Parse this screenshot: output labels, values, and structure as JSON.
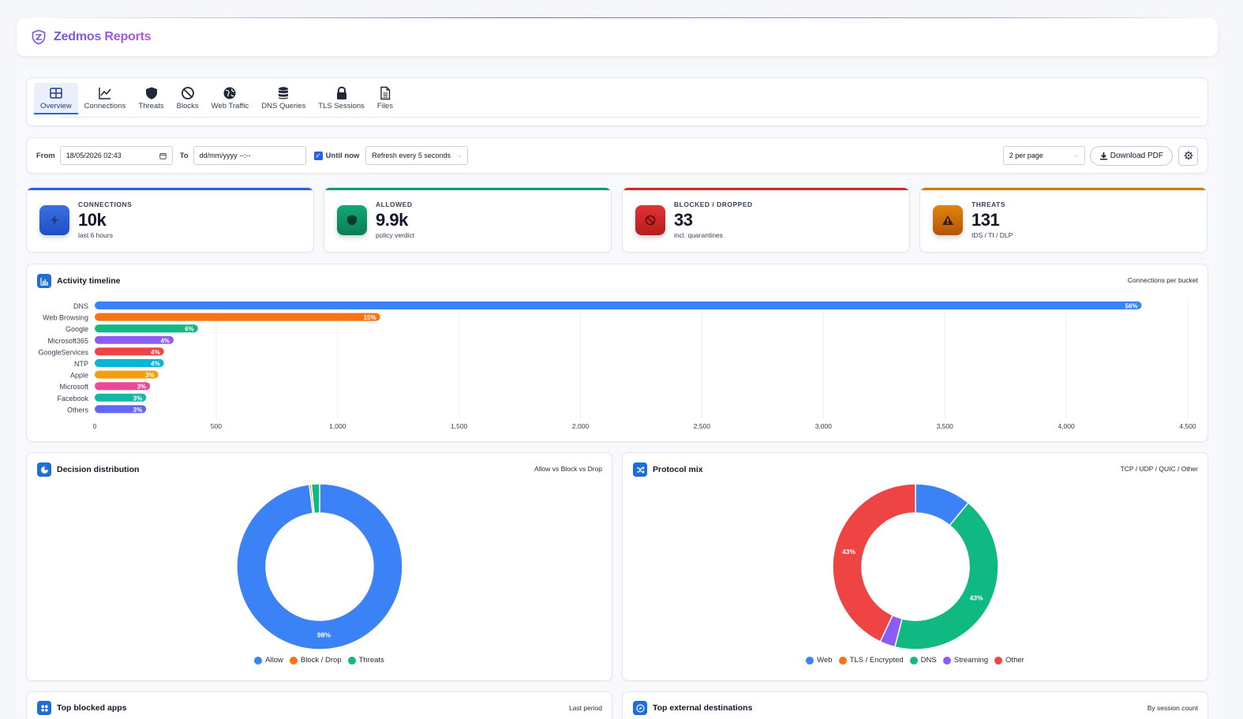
{
  "app": {
    "title": "Zedmos Reports",
    "brand_color": "#7a56e6"
  },
  "tabs": [
    {
      "label": "Overview",
      "icon": "grid-icon",
      "active": true
    },
    {
      "label": "Connections",
      "icon": "chart-line-icon",
      "active": false
    },
    {
      "label": "Threats",
      "icon": "shield-icon",
      "active": false
    },
    {
      "label": "Blocks",
      "icon": "ban-icon",
      "active": false
    },
    {
      "label": "Web Traffic",
      "icon": "globe-icon",
      "active": false
    },
    {
      "label": "DNS Queries",
      "icon": "database-icon",
      "active": false
    },
    {
      "label": "TLS Sessions",
      "icon": "lock-icon",
      "active": false
    },
    {
      "label": "Files",
      "icon": "file-icon",
      "active": false
    }
  ],
  "filters": {
    "from_label": "From",
    "from_value": "18/05/2026 02:43",
    "to_label": "To",
    "to_placeholder": "dd/mm/yyyy --:--",
    "until_now_label": "Until now",
    "until_now_checked": true,
    "refresh_value": "Refresh every 5 seconds",
    "per_page_value": "2 per page",
    "download_label": "Download PDF"
  },
  "stats": [
    {
      "label": "CONNECTIONS",
      "value": "10k",
      "sub": "last 6 hours",
      "color": "#2563eb",
      "icon": "bolt-icon"
    },
    {
      "label": "ALLOWED",
      "value": "9.9k",
      "sub": "policy verdict",
      "color": "#0f9d6b",
      "icon": "shield-icon"
    },
    {
      "label": "BLOCKED / DROPPED",
      "value": "33",
      "sub": "incl. quarantines",
      "color": "#dc2626",
      "icon": "ban-icon"
    },
    {
      "label": "THREATS",
      "value": "131",
      "sub": "IDS / TI / DLP",
      "color": "#d97706",
      "icon": "warning-icon"
    }
  ],
  "timeline": {
    "title": "Activity timeline",
    "right": "Connections per bucket"
  },
  "decision": {
    "title": "Decision distribution",
    "right": "Allow vs Block vs Drop"
  },
  "protocol": {
    "title": "Protocol mix",
    "right": "TCP / UDP / QUIC / Other"
  },
  "bottom": {
    "left_title": "Top blocked apps",
    "left_right": "Last period",
    "right_title": "Top external destinations",
    "right_right": "By session count"
  },
  "chart_data": [
    {
      "type": "bar",
      "orientation": "horizontal",
      "categories": [
        "DNS",
        "Web Browsing",
        "Google",
        "Microsoft365",
        "GoogleServices",
        "NTP",
        "Apple",
        "Microsoft",
        "Facebook",
        "Others"
      ],
      "values": [
        4310,
        1175,
        425,
        325,
        285,
        285,
        262,
        228,
        212,
        212
      ],
      "labels": [
        "56%",
        "15%",
        "6%",
        "4%",
        "4%",
        "4%",
        "3%",
        "3%",
        "3%",
        "3%"
      ],
      "colors": [
        "#3b82f6",
        "#f97316",
        "#10b981",
        "#8b5cf6",
        "#ef4444",
        "#06b6d4",
        "#f59e0b",
        "#ec4899",
        "#14b8a6",
        "#6366f1"
      ],
      "xlim": [
        0,
        4500
      ],
      "xticks": [
        "0",
        "500",
        "1,000",
        "1,500",
        "2,000",
        "2,500",
        "3,000",
        "3,500",
        "4,000",
        "4,500"
      ],
      "grid": "vertical"
    },
    {
      "type": "pie",
      "subtype": "donut",
      "categories": [
        "Allow",
        "Block / Drop",
        "Threats"
      ],
      "values": [
        98,
        0.4,
        1.6
      ],
      "labels": [
        "98%",
        "",
        ""
      ],
      "colors": [
        "#3b82f6",
        "#f97316",
        "#10b981"
      ],
      "legend": "bottom"
    },
    {
      "type": "pie",
      "subtype": "donut",
      "categories": [
        "Web",
        "TLS / Encrypted",
        "DNS",
        "Streaming",
        "Other"
      ],
      "values": [
        11,
        0,
        43,
        3,
        43
      ],
      "labels": [
        "",
        "",
        "43%",
        "",
        "43%"
      ],
      "colors": [
        "#3b82f6",
        "#f97316",
        "#10b981",
        "#8b5cf6",
        "#ef4444"
      ],
      "legend": "bottom"
    }
  ]
}
